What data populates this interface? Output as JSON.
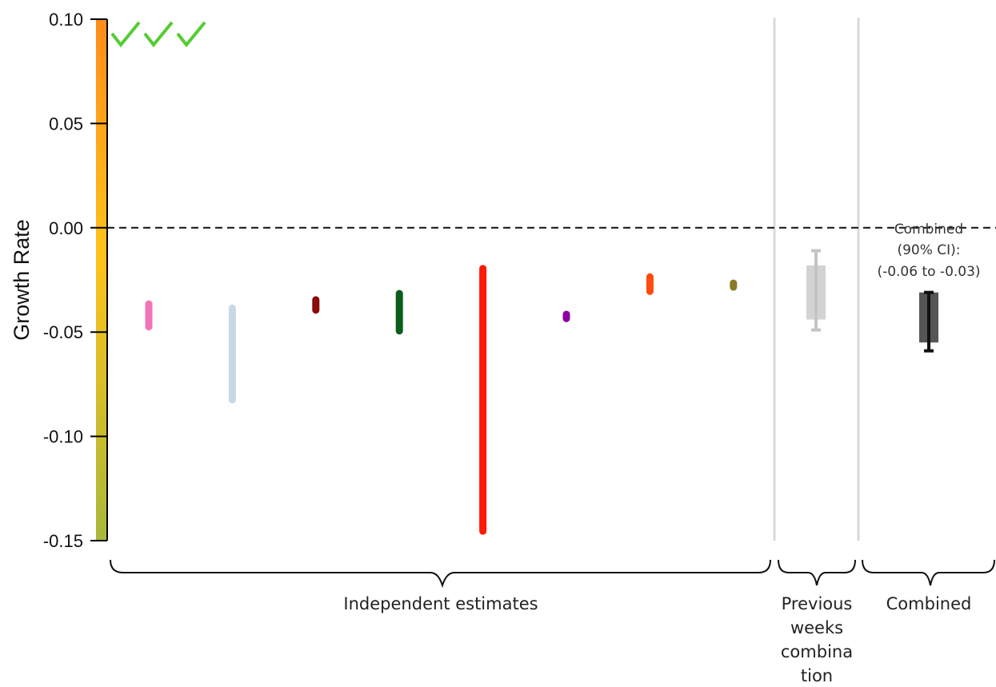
{
  "chart_data": {
    "type": "errorbar",
    "ylabel": "Growth Rate",
    "ylim": [
      -0.15,
      0.1
    ],
    "yticks": [
      0.1,
      0.05,
      0.0,
      -0.05,
      -0.1,
      -0.15
    ],
    "ytick_labels": [
      "0.10",
      "0.05",
      "0.00",
      "-0.05",
      "-0.10",
      "-0.15"
    ],
    "reference_line": {
      "y": 0.0,
      "style": "dashed"
    },
    "checkmarks": 3,
    "independent_estimates": [
      {
        "low": -0.049,
        "high": -0.035,
        "color": "#f472b6"
      },
      {
        "low": -0.084,
        "high": -0.037,
        "color": "#c9d8e6"
      },
      {
        "low": -0.041,
        "high": -0.033,
        "color": "#8b0a0a"
      },
      {
        "low": -0.051,
        "high": -0.03,
        "color": "#0b5e1a"
      },
      {
        "low": -0.147,
        "high": -0.018,
        "color": "#ff1a0a"
      },
      {
        "low": -0.043,
        "high": -0.042,
        "color": "#8a00a0"
      },
      {
        "low": -0.032,
        "high": -0.022,
        "color": "#ff4a10"
      },
      {
        "low": -0.03,
        "high": -0.025,
        "color": "#8a7a26"
      }
    ],
    "previous_weeks_combination": {
      "box_low": -0.044,
      "box_high": -0.018,
      "whisker_low": -0.049,
      "whisker_high": -0.011,
      "color": "#d3d3d3"
    },
    "combined": {
      "box_low": -0.055,
      "box_high": -0.031,
      "whisker_low": -0.059,
      "whisker_high": -0.031,
      "color": "#555555"
    },
    "group_labels": {
      "independent": "Independent estimates",
      "previous": [
        "Previous",
        "weeks",
        "combina",
        "tion"
      ],
      "combined": "Combined"
    },
    "annotation": [
      "Combined",
      "(90% CI):",
      "(-0.06 to -0.03)"
    ],
    "colorbar": {
      "top": "#ff8c1a",
      "middle": "#ffc21a",
      "bottom": "#a8b83a"
    }
  }
}
